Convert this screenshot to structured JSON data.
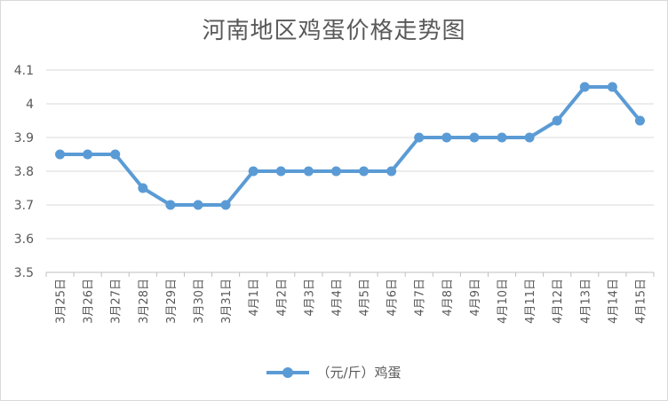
{
  "chart_data": {
    "type": "line",
    "title": "河南地区鸡蛋价格走势图",
    "xlabel": "",
    "ylabel": "",
    "categories": [
      "3月25日",
      "3月26日",
      "3月27日",
      "3月28日",
      "3月29日",
      "3月30日",
      "3月31日",
      "4月1日",
      "4月2日",
      "4月3日",
      "4月4日",
      "4月5日",
      "4月6日",
      "4月7日",
      "4月8日",
      "4月9日",
      "4月10日",
      "4月11日",
      "4月12日",
      "4月13日",
      "4月14日",
      "4月15日"
    ],
    "series": [
      {
        "name": "（元/斤）鸡蛋",
        "values": [
          3.85,
          3.85,
          3.85,
          3.75,
          3.7,
          3.7,
          3.7,
          3.8,
          3.8,
          3.8,
          3.8,
          3.8,
          3.8,
          3.9,
          3.9,
          3.9,
          3.9,
          3.9,
          3.95,
          4.05,
          4.05,
          3.95
        ]
      }
    ],
    "ylim": [
      3.5,
      4.1
    ],
    "yticks": [
      "3.5",
      "3.6",
      "3.7",
      "3.8",
      "3.9",
      "4",
      "4.1"
    ],
    "grid": true,
    "legend": "bottom",
    "color": "#5b9bd5"
  }
}
